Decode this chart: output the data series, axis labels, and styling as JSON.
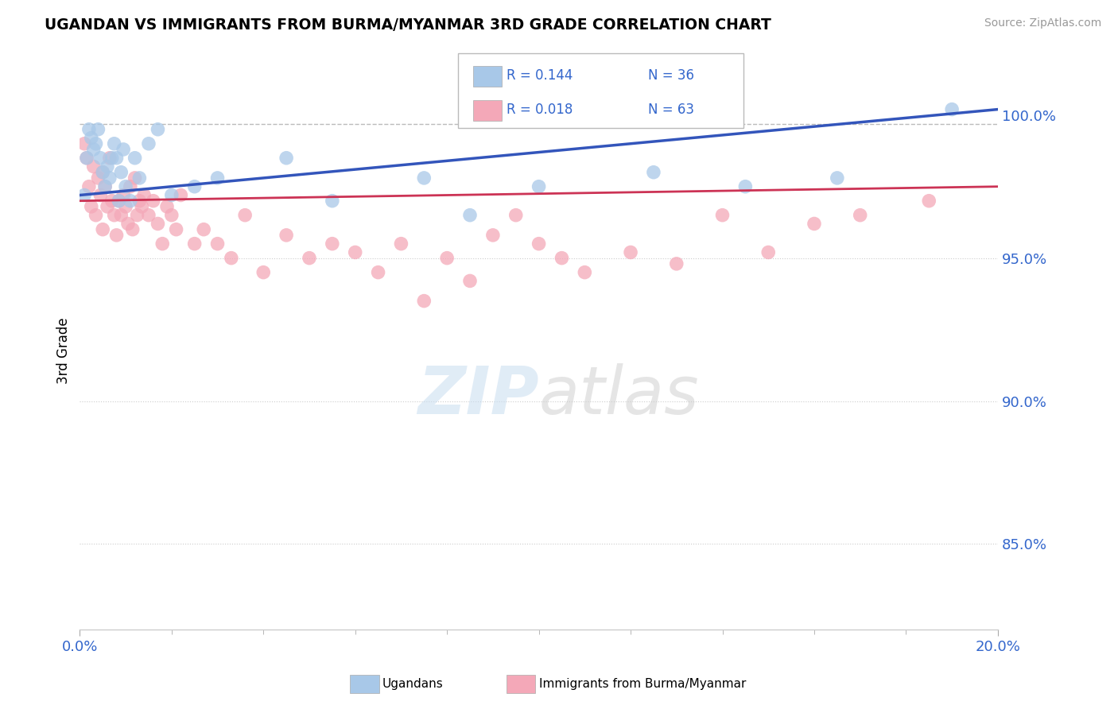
{
  "title": "UGANDAN VS IMMIGRANTS FROM BURMA/MYANMAR 3RD GRADE CORRELATION CHART",
  "source_text": "Source: ZipAtlas.com",
  "ylabel": "3rd Grade",
  "xlim": [
    0.0,
    20.0
  ],
  "ylim": [
    82.0,
    101.5
  ],
  "x_tick_labels": [
    "0.0%",
    "20.0%"
  ],
  "y_ticks": [
    85.0,
    90.0,
    95.0,
    100.0
  ],
  "y_tick_labels": [
    "85.0%",
    "90.0%",
    "95.0%",
    "100.0%"
  ],
  "dashed_line_y": 99.7,
  "legend_R_blue": "R = 0.144",
  "legend_N_blue": "N = 36",
  "legend_R_pink": "R = 0.018",
  "legend_N_pink": "N = 63",
  "blue_color": "#a8c8e8",
  "pink_color": "#f4a8b8",
  "trend_blue": "#3355bb",
  "trend_pink": "#cc3355",
  "ugandan_x": [
    0.1,
    0.15,
    0.2,
    0.25,
    0.3,
    0.35,
    0.4,
    0.45,
    0.5,
    0.55,
    0.6,
    0.65,
    0.7,
    0.75,
    0.8,
    0.85,
    0.9,
    0.95,
    1.0,
    1.1,
    1.2,
    1.3,
    1.5,
    1.7,
    2.0,
    2.5,
    3.0,
    4.5,
    5.5,
    7.5,
    8.5,
    10.0,
    12.5,
    14.5,
    16.5,
    19.0
  ],
  "ugandan_y": [
    97.2,
    98.5,
    99.5,
    99.2,
    98.8,
    99.0,
    99.5,
    98.5,
    98.0,
    97.5,
    98.2,
    97.8,
    98.5,
    99.0,
    98.5,
    97.0,
    98.0,
    98.8,
    97.5,
    97.0,
    98.5,
    97.8,
    99.0,
    99.5,
    97.2,
    97.5,
    97.8,
    98.5,
    97.0,
    97.8,
    96.5,
    97.5,
    98.0,
    97.5,
    97.8,
    100.2
  ],
  "burma_x": [
    0.1,
    0.15,
    0.2,
    0.25,
    0.3,
    0.35,
    0.4,
    0.45,
    0.5,
    0.5,
    0.55,
    0.6,
    0.65,
    0.7,
    0.75,
    0.8,
    0.85,
    0.9,
    0.95,
    1.0,
    1.05,
    1.1,
    1.15,
    1.2,
    1.25,
    1.3,
    1.35,
    1.4,
    1.5,
    1.6,
    1.7,
    1.8,
    1.9,
    2.0,
    2.1,
    2.2,
    2.5,
    2.7,
    3.0,
    3.3,
    3.6,
    4.0,
    4.5,
    5.0,
    5.5,
    6.0,
    6.5,
    7.0,
    7.5,
    8.0,
    8.5,
    9.0,
    9.5,
    10.0,
    10.5,
    11.0,
    12.0,
    13.0,
    14.0,
    15.0,
    16.0,
    17.0,
    18.5
  ],
  "burma_y": [
    99.0,
    98.5,
    97.5,
    96.8,
    98.2,
    96.5,
    97.8,
    97.2,
    96.0,
    98.0,
    97.5,
    96.8,
    98.5,
    97.0,
    96.5,
    95.8,
    97.0,
    96.5,
    97.2,
    96.8,
    96.2,
    97.5,
    96.0,
    97.8,
    96.5,
    97.0,
    96.8,
    97.2,
    96.5,
    97.0,
    96.2,
    95.5,
    96.8,
    96.5,
    96.0,
    97.2,
    95.5,
    96.0,
    95.5,
    95.0,
    96.5,
    94.5,
    95.8,
    95.0,
    95.5,
    95.2,
    94.5,
    95.5,
    93.5,
    95.0,
    94.2,
    95.8,
    96.5,
    95.5,
    95.0,
    94.5,
    95.2,
    94.8,
    96.5,
    95.2,
    96.2,
    96.5,
    97.0
  ]
}
